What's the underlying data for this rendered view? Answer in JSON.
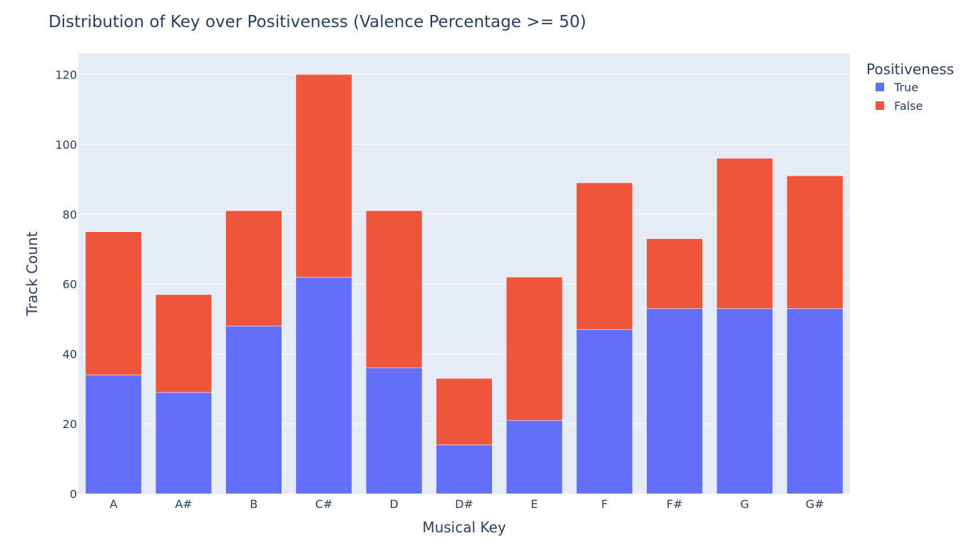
{
  "chart_data": {
    "type": "bar",
    "stacked": true,
    "title": "Distribution of Key over Positiveness (Valence Percentage >= 50)",
    "xlabel": "Musical Key",
    "ylabel": "Track Count",
    "categories": [
      "A",
      "A#",
      "B",
      "C#",
      "D",
      "D#",
      "E",
      "F",
      "F#",
      "G",
      "G#"
    ],
    "ylim": [
      0,
      126
    ],
    "yticks": [
      0,
      20,
      40,
      60,
      80,
      100,
      120
    ],
    "grid": true,
    "legend": {
      "title": "Positiveness",
      "position": "top-right"
    },
    "series": [
      {
        "name": "True",
        "color": "#636efa",
        "values": [
          34,
          29,
          48,
          62,
          36,
          14,
          21,
          47,
          53,
          53,
          53
        ]
      },
      {
        "name": "False",
        "color": "#ef553b",
        "values": [
          41,
          28,
          33,
          58,
          45,
          19,
          41,
          42,
          20,
          43,
          38
        ]
      }
    ],
    "colors": {
      "plot_bg": "#e5ecf6",
      "grid": "#ffffff",
      "text": "#2a3f5f"
    }
  }
}
